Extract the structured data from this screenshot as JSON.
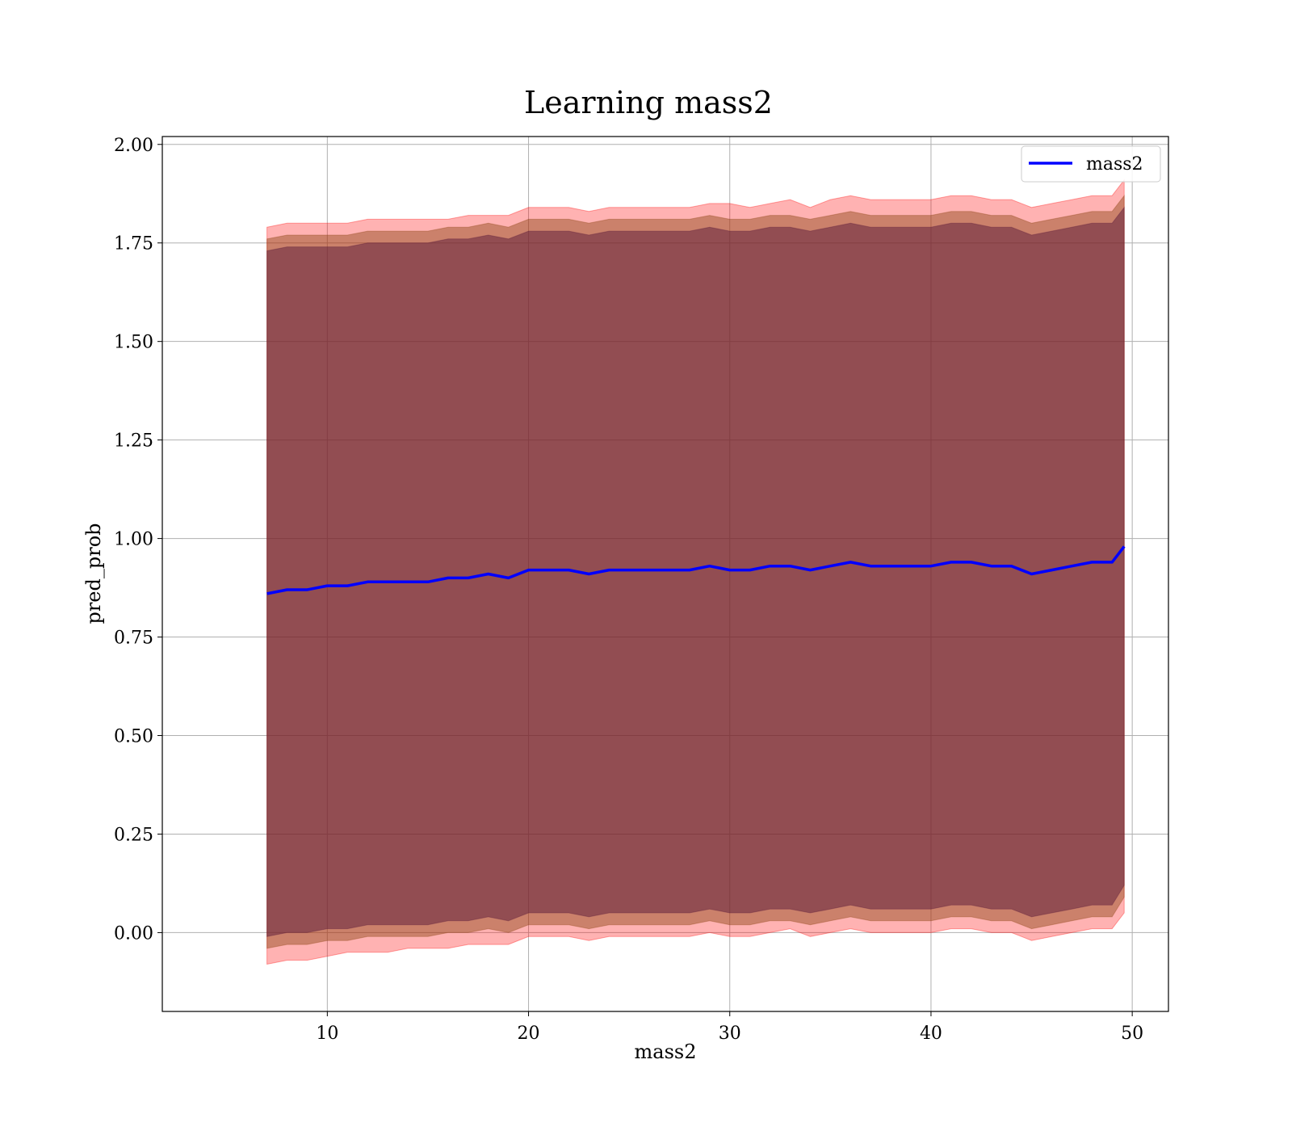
{
  "chart_data": {
    "type": "line",
    "title": "Learning mass2",
    "xlabel": "mass2",
    "ylabel": "pred_prob",
    "xlim": [
      1.8,
      51.8
    ],
    "ylim": [
      -0.2,
      2.02
    ],
    "xticks": [
      10,
      20,
      30,
      40,
      50
    ],
    "yticks": [
      0.0,
      0.25,
      0.5,
      0.75,
      1.0,
      1.25,
      1.5,
      1.75,
      2.0
    ],
    "xtick_labels": [
      "10",
      "20",
      "30",
      "40",
      "50"
    ],
    "ytick_labels": [
      "0.00",
      "0.25",
      "0.50",
      "0.75",
      "1.00",
      "1.25",
      "1.50",
      "1.75",
      "2.00"
    ],
    "grid": true,
    "legend_position": "top-right",
    "series": [
      {
        "name": "mass2",
        "color": "#0000ff",
        "x": [
          7,
          8,
          9,
          10,
          11,
          12,
          13,
          14,
          15,
          16,
          17,
          18,
          19,
          20,
          21,
          22,
          23,
          24,
          25,
          26,
          27,
          28,
          29,
          30,
          31,
          32,
          33,
          34,
          35,
          36,
          37,
          38,
          39,
          40,
          41,
          42,
          43,
          44,
          45,
          46,
          47,
          48,
          49,
          49.6
        ],
        "y": [
          0.86,
          0.87,
          0.87,
          0.88,
          0.88,
          0.89,
          0.89,
          0.89,
          0.89,
          0.9,
          0.9,
          0.91,
          0.9,
          0.92,
          0.92,
          0.92,
          0.91,
          0.92,
          0.92,
          0.92,
          0.92,
          0.92,
          0.93,
          0.92,
          0.92,
          0.93,
          0.93,
          0.92,
          0.93,
          0.94,
          0.93,
          0.93,
          0.93,
          0.93,
          0.94,
          0.94,
          0.93,
          0.93,
          0.91,
          0.92,
          0.93,
          0.94,
          0.94,
          0.98
        ],
        "band_outer": {
          "color": "#ff0000",
          "upper": [
            1.79,
            1.8,
            1.8,
            1.8,
            1.8,
            1.81,
            1.81,
            1.81,
            1.81,
            1.81,
            1.82,
            1.82,
            1.82,
            1.84,
            1.84,
            1.84,
            1.83,
            1.84,
            1.84,
            1.84,
            1.84,
            1.84,
            1.85,
            1.85,
            1.84,
            1.85,
            1.86,
            1.84,
            1.86,
            1.87,
            1.86,
            1.86,
            1.86,
            1.86,
            1.87,
            1.87,
            1.86,
            1.86,
            1.84,
            1.85,
            1.86,
            1.87,
            1.87,
            1.91
          ],
          "lower": [
            -0.08,
            -0.07,
            -0.07,
            -0.06,
            -0.05,
            -0.05,
            -0.05,
            -0.04,
            -0.04,
            -0.04,
            -0.03,
            -0.03,
            -0.03,
            -0.01,
            -0.01,
            -0.01,
            -0.02,
            -0.01,
            -0.01,
            -0.01,
            -0.01,
            -0.01,
            0.0,
            -0.01,
            -0.01,
            0.0,
            0.01,
            -0.01,
            0.0,
            0.01,
            0.0,
            0.0,
            0.0,
            0.0,
            0.01,
            0.01,
            0.0,
            0.0,
            -0.02,
            -0.01,
            0.0,
            0.01,
            0.01,
            0.05
          ]
        },
        "band_middle": {
          "color": "#8b4513",
          "upper": [
            1.76,
            1.77,
            1.77,
            1.77,
            1.77,
            1.78,
            1.78,
            1.78,
            1.78,
            1.79,
            1.79,
            1.8,
            1.79,
            1.81,
            1.81,
            1.81,
            1.8,
            1.81,
            1.81,
            1.81,
            1.81,
            1.81,
            1.82,
            1.81,
            1.81,
            1.82,
            1.82,
            1.81,
            1.82,
            1.83,
            1.82,
            1.82,
            1.82,
            1.82,
            1.83,
            1.83,
            1.82,
            1.82,
            1.8,
            1.81,
            1.82,
            1.83,
            1.83,
            1.87
          ],
          "lower": [
            -0.04,
            -0.03,
            -0.03,
            -0.02,
            -0.02,
            -0.01,
            -0.01,
            -0.01,
            -0.01,
            0.0,
            0.0,
            0.01,
            0.0,
            0.02,
            0.02,
            0.02,
            0.01,
            0.02,
            0.02,
            0.02,
            0.02,
            0.02,
            0.03,
            0.02,
            0.02,
            0.03,
            0.03,
            0.02,
            0.03,
            0.04,
            0.03,
            0.03,
            0.03,
            0.03,
            0.04,
            0.04,
            0.03,
            0.03,
            0.01,
            0.02,
            0.03,
            0.04,
            0.04,
            0.09
          ]
        },
        "band_inner": {
          "color": "#5a1a3a",
          "upper": [
            1.73,
            1.74,
            1.74,
            1.74,
            1.74,
            1.75,
            1.75,
            1.75,
            1.75,
            1.76,
            1.76,
            1.77,
            1.76,
            1.78,
            1.78,
            1.78,
            1.77,
            1.78,
            1.78,
            1.78,
            1.78,
            1.78,
            1.79,
            1.78,
            1.78,
            1.79,
            1.79,
            1.78,
            1.79,
            1.8,
            1.79,
            1.79,
            1.79,
            1.79,
            1.8,
            1.8,
            1.79,
            1.79,
            1.77,
            1.78,
            1.79,
            1.8,
            1.8,
            1.84
          ],
          "lower": [
            -0.01,
            0.0,
            0.0,
            0.01,
            0.01,
            0.02,
            0.02,
            0.02,
            0.02,
            0.03,
            0.03,
            0.04,
            0.03,
            0.05,
            0.05,
            0.05,
            0.04,
            0.05,
            0.05,
            0.05,
            0.05,
            0.05,
            0.06,
            0.05,
            0.05,
            0.06,
            0.06,
            0.05,
            0.06,
            0.07,
            0.06,
            0.06,
            0.06,
            0.06,
            0.07,
            0.07,
            0.06,
            0.06,
            0.04,
            0.05,
            0.06,
            0.07,
            0.07,
            0.12
          ]
        }
      }
    ]
  }
}
